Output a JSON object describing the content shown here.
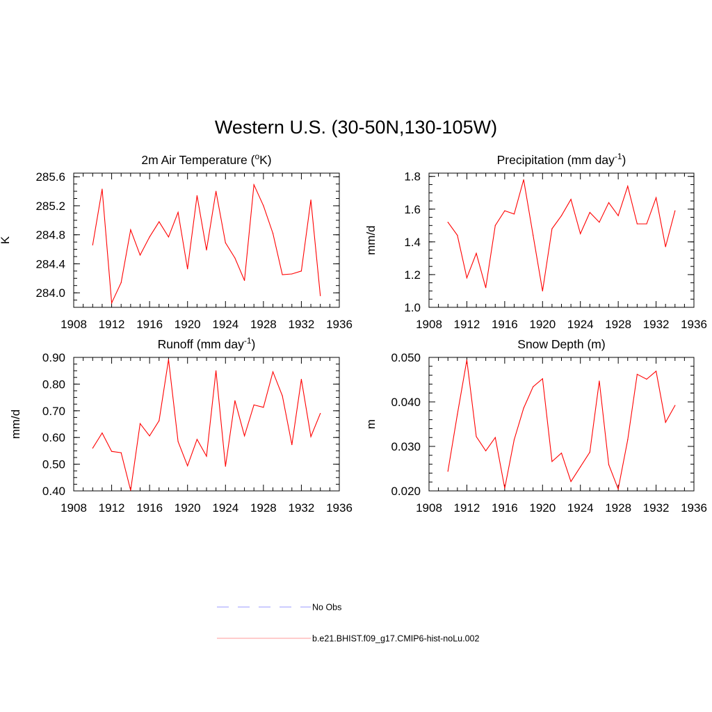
{
  "title": "Western U.S. (30-50N,130-105W)",
  "colors": {
    "model": "#ff0000",
    "obs": "#9999ff",
    "axis": "#000000"
  },
  "legend": [
    {
      "label": "No Obs",
      "style": "dashed",
      "color": "#9999ff"
    },
    {
      "label": "b.e21.BHIST.f09_g17.CMIP6-hist-noLu.002",
      "style": "solid",
      "color": "#ff9999"
    }
  ],
  "chart_data": [
    {
      "type": "line",
      "title": "2m Air Temperature (",
      "title_sup": "o",
      "title_after": "K)",
      "ylabel": "K",
      "xlim": [
        1908,
        1936
      ],
      "ylim": [
        283.8,
        285.65
      ],
      "xticks": [
        "1908",
        "1912",
        "1916",
        "1920",
        "1924",
        "1928",
        "1932",
        "1936"
      ],
      "yticks": [
        {
          "v": 284.0,
          "label": "284.0"
        },
        {
          "v": 284.4,
          "label": "284.4"
        },
        {
          "v": 284.8,
          "label": "284.8"
        },
        {
          "v": 285.2,
          "label": "285.2"
        },
        {
          "v": 285.6,
          "label": "285.6"
        }
      ],
      "yminor": 0.1,
      "series": [
        {
          "x": [
            1910,
            1911,
            1912,
            1913,
            1914,
            1915,
            1916,
            1917,
            1918,
            1919,
            1920,
            1921,
            1922,
            1923,
            1924,
            1925,
            1926,
            1927,
            1928,
            1929,
            1930,
            1931,
            1932,
            1933,
            1934
          ],
          "values": [
            284.66,
            285.43,
            283.86,
            284.14,
            284.87,
            284.52,
            284.77,
            284.98,
            284.77,
            285.11,
            284.33,
            285.34,
            284.59,
            285.4,
            284.69,
            284.48,
            284.17,
            285.49,
            285.2,
            284.82,
            284.25,
            284.26,
            284.3,
            285.28,
            283.96
          ]
        }
      ]
    },
    {
      "type": "line",
      "title": "Precipitation (mm day",
      "title_sup": "-1",
      "title_after": ")",
      "ylabel": "mm/d",
      "xlim": [
        1908,
        1936
      ],
      "ylim": [
        1.0,
        1.82
      ],
      "xticks": [
        "1908",
        "1912",
        "1916",
        "1920",
        "1924",
        "1928",
        "1932",
        "1936"
      ],
      "yticks": [
        {
          "v": 1.0,
          "label": "1.0"
        },
        {
          "v": 1.2,
          "label": "1.2"
        },
        {
          "v": 1.4,
          "label": "1.4"
        },
        {
          "v": 1.6,
          "label": "1.6"
        },
        {
          "v": 1.8,
          "label": "1.8"
        }
      ],
      "yminor": 0.05,
      "series": [
        {
          "x": [
            1910,
            1911,
            1912,
            1913,
            1914,
            1915,
            1916,
            1917,
            1918,
            1919,
            1920,
            1921,
            1922,
            1923,
            1924,
            1925,
            1926,
            1927,
            1928,
            1929,
            1930,
            1931,
            1932,
            1933,
            1934
          ],
          "values": [
            1.52,
            1.44,
            1.18,
            1.33,
            1.12,
            1.5,
            1.59,
            1.57,
            1.78,
            1.44,
            1.1,
            1.48,
            1.56,
            1.66,
            1.45,
            1.58,
            1.52,
            1.64,
            1.56,
            1.74,
            1.51,
            1.51,
            1.67,
            1.37,
            1.59
          ]
        }
      ]
    },
    {
      "type": "line",
      "title": "Runoff (mm day",
      "title_sup": "-1",
      "title_after": ")",
      "ylabel": "mm/d",
      "xlim": [
        1908,
        1936
      ],
      "ylim": [
        0.4,
        0.9
      ],
      "xticks": [
        "1908",
        "1912",
        "1916",
        "1920",
        "1924",
        "1928",
        "1932",
        "1936"
      ],
      "yticks": [
        {
          "v": 0.4,
          "label": "0.40"
        },
        {
          "v": 0.5,
          "label": "0.50"
        },
        {
          "v": 0.6,
          "label": "0.60"
        },
        {
          "v": 0.7,
          "label": "0.70"
        },
        {
          "v": 0.8,
          "label": "0.80"
        },
        {
          "v": 0.9,
          "label": "0.90"
        }
      ],
      "yminor": 0.025,
      "series": [
        {
          "x": [
            1910,
            1911,
            1912,
            1913,
            1914,
            1915,
            1916,
            1917,
            1918,
            1919,
            1920,
            1921,
            1922,
            1923,
            1924,
            1925,
            1926,
            1927,
            1928,
            1929,
            1930,
            1931,
            1932,
            1933,
            1934
          ],
          "values": [
            0.56,
            0.617,
            0.548,
            0.543,
            0.402,
            0.652,
            0.606,
            0.663,
            0.892,
            0.585,
            0.494,
            0.593,
            0.53,
            0.85,
            0.492,
            0.738,
            0.606,
            0.722,
            0.713,
            0.846,
            0.756,
            0.573,
            0.818,
            0.603,
            0.69
          ]
        }
      ]
    },
    {
      "type": "line",
      "title": "Snow Depth (m)",
      "title_sup": "",
      "title_after": "",
      "ylabel": "m",
      "xlim": [
        1908,
        1936
      ],
      "ylim": [
        0.02,
        0.05
      ],
      "xticks": [
        "1908",
        "1912",
        "1916",
        "1920",
        "1924",
        "1928",
        "1932",
        "1936"
      ],
      "yticks": [
        {
          "v": 0.02,
          "label": "0.020"
        },
        {
          "v": 0.03,
          "label": "0.030"
        },
        {
          "v": 0.04,
          "label": "0.040"
        },
        {
          "v": 0.05,
          "label": "0.050"
        }
      ],
      "yminor": 0.002,
      "series": [
        {
          "x": [
            1910,
            1911,
            1912,
            1913,
            1914,
            1915,
            1916,
            1917,
            1918,
            1919,
            1920,
            1921,
            1922,
            1923,
            1924,
            1925,
            1926,
            1927,
            1928,
            1929,
            1930,
            1931,
            1932,
            1933,
            1934
          ],
          "values": [
            0.0244,
            0.0372,
            0.0494,
            0.0322,
            0.029,
            0.032,
            0.0206,
            0.0315,
            0.0386,
            0.0434,
            0.0452,
            0.0266,
            0.0285,
            0.0221,
            0.0254,
            0.0287,
            0.0447,
            0.0259,
            0.0204,
            0.0315,
            0.0462,
            0.0451,
            0.0469,
            0.0354,
            0.0392
          ]
        }
      ]
    }
  ]
}
